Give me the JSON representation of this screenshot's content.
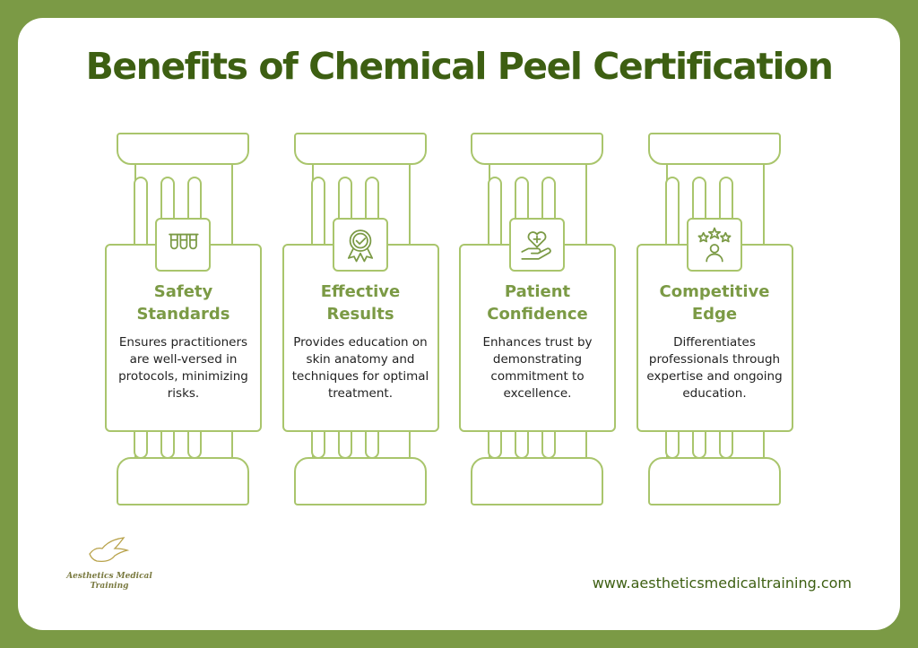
{
  "title": "Benefits of Chemical Peel Certification",
  "colors": {
    "frame": "#7b9a45",
    "title": "#3d5f12",
    "outline": "#a9c56c",
    "heading": "#7b9a45"
  },
  "pillars": [
    {
      "icon": "test-tubes-icon",
      "heading": "Safety Standards",
      "description": "Ensures practitioners are well-versed in protocols, minimizing risks."
    },
    {
      "icon": "award-badge-icon",
      "heading": "Effective Results",
      "description": "Provides education on skin anatomy and techniques for optimal treatment."
    },
    {
      "icon": "heart-hand-icon",
      "heading": "Patient Confidence",
      "description": "Enhances trust by demonstrating commitment to excellence."
    },
    {
      "icon": "stars-person-icon",
      "heading": "Competitive Edge",
      "description": "Differentiates professionals through expertise and ongoing education."
    }
  ],
  "logo": {
    "text": "Aesthetics Medical Training"
  },
  "website": "www.aestheticsmedicaltraining.com"
}
